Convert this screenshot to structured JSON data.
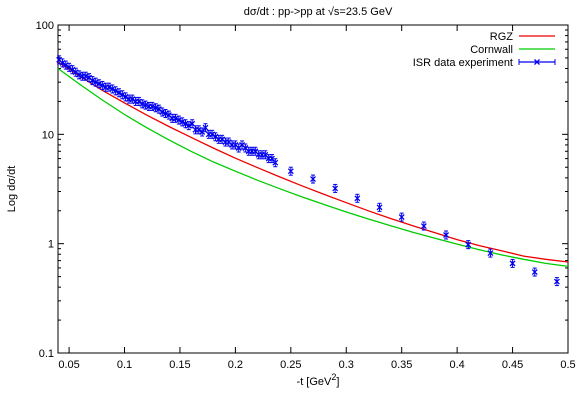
{
  "chart_data": {
    "type": "line",
    "title": "dσ/dt : pp->pp at √s=23.5 GeV",
    "xlabel": "-t [GeV",
    "xlabel_sup": "2",
    "xlabel_end": "]",
    "ylabel": "Log dσ/dt",
    "xlim": [
      0.04,
      0.5
    ],
    "ylim": [
      0.1,
      100
    ],
    "y_scale": "log",
    "grid": false,
    "legend_position": "top-right",
    "x_ticks": [
      {
        "value": 0.05,
        "label": "0.05"
      },
      {
        "value": 0.1,
        "label": "0.1"
      },
      {
        "value": 0.15,
        "label": "0.15"
      },
      {
        "value": 0.2,
        "label": "0.2"
      },
      {
        "value": 0.25,
        "label": "0.25"
      },
      {
        "value": 0.3,
        "label": "0.3"
      },
      {
        "value": 0.35,
        "label": "0.35"
      },
      {
        "value": 0.4,
        "label": "0.4"
      },
      {
        "value": 0.45,
        "label": "0.45"
      },
      {
        "value": 0.5,
        "label": "0.5"
      }
    ],
    "y_ticks": [
      {
        "value": 0.1,
        "label": "0.1"
      },
      {
        "value": 1,
        "label": "1"
      },
      {
        "value": 10,
        "label": "10"
      },
      {
        "value": 100,
        "label": "100"
      }
    ],
    "series": [
      {
        "name": "RGZ",
        "kind": "line",
        "color": "#ee0000",
        "x": [
          0.04,
          0.06,
          0.08,
          0.1,
          0.12,
          0.14,
          0.16,
          0.18,
          0.2,
          0.22,
          0.24,
          0.26,
          0.28,
          0.3,
          0.32,
          0.34,
          0.36,
          0.38,
          0.4,
          0.42,
          0.44,
          0.46,
          0.48,
          0.5
        ],
        "y": [
          46.0,
          33.8,
          25.3,
          19.4,
          15.0,
          11.8,
          9.4,
          7.5,
          6.05,
          4.95,
          4.08,
          3.38,
          2.82,
          2.37,
          2.0,
          1.7,
          1.46,
          1.26,
          1.09,
          0.96,
          0.86,
          0.77,
          0.72,
          0.68
        ]
      },
      {
        "name": "Cornwall",
        "kind": "line",
        "color": "#00cc00",
        "x": [
          0.04,
          0.06,
          0.08,
          0.1,
          0.12,
          0.14,
          0.16,
          0.18,
          0.2,
          0.22,
          0.24,
          0.26,
          0.28,
          0.3,
          0.32,
          0.34,
          0.36,
          0.38,
          0.4,
          0.42,
          0.44,
          0.46,
          0.48,
          0.5
        ],
        "y": [
          40.0,
          28.5,
          20.6,
          15.2,
          11.5,
          8.9,
          7.0,
          5.6,
          4.6,
          3.8,
          3.18,
          2.68,
          2.28,
          1.95,
          1.68,
          1.46,
          1.27,
          1.12,
          0.99,
          0.88,
          0.79,
          0.72,
          0.66,
          0.62
        ]
      },
      {
        "name": "ISR data experiment",
        "kind": "points",
        "color": "#0000ee",
        "x": [
          0.041,
          0.044,
          0.047,
          0.05,
          0.053,
          0.056,
          0.059,
          0.062,
          0.065,
          0.068,
          0.071,
          0.074,
          0.077,
          0.08,
          0.083,
          0.086,
          0.089,
          0.092,
          0.095,
          0.098,
          0.101,
          0.104,
          0.107,
          0.11,
          0.113,
          0.116,
          0.119,
          0.122,
          0.125,
          0.128,
          0.131,
          0.134,
          0.137,
          0.14,
          0.143,
          0.146,
          0.149,
          0.152,
          0.155,
          0.158,
          0.161,
          0.164,
          0.167,
          0.17,
          0.173,
          0.176,
          0.179,
          0.182,
          0.185,
          0.188,
          0.191,
          0.194,
          0.197,
          0.2,
          0.203,
          0.206,
          0.209,
          0.212,
          0.215,
          0.218,
          0.221,
          0.224,
          0.227,
          0.23,
          0.233,
          0.236,
          0.25,
          0.27,
          0.29,
          0.31,
          0.33,
          0.35,
          0.37,
          0.39,
          0.41,
          0.43,
          0.45,
          0.47,
          0.49
        ],
        "y": [
          48,
          45,
          43,
          41,
          39,
          37,
          35,
          34,
          34,
          33,
          31,
          30,
          29,
          28,
          27,
          27,
          26,
          25,
          24,
          23,
          22,
          21,
          21,
          20,
          20,
          19,
          18.5,
          18,
          18,
          17.5,
          17,
          16,
          15.5,
          15,
          14,
          14,
          13.5,
          13,
          12.5,
          12,
          12.5,
          11,
          11,
          10.5,
          11.5,
          10,
          10,
          9.5,
          9,
          9,
          8.5,
          8.5,
          8,
          8,
          7.5,
          8,
          7.5,
          7,
          7,
          7,
          6.5,
          6.5,
          6.5,
          6,
          6,
          5.5,
          4.6,
          3.9,
          3.2,
          2.6,
          2.15,
          1.75,
          1.45,
          1.2,
          0.98,
          0.82,
          0.66,
          0.55,
          0.45
        ]
      }
    ]
  }
}
